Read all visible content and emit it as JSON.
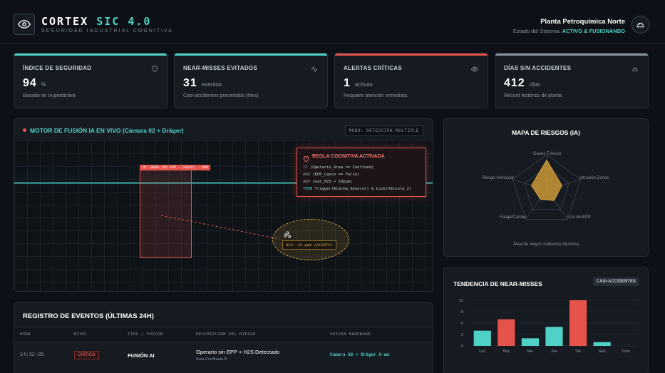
{
  "header": {
    "brand_main": "CORTEX",
    "brand_accent": "SIC 4.0",
    "subtitle": "SEGURIDAD INDUSTRIAL COGNITIVA",
    "plant_name": "Planta Petroquímica Norte",
    "status_label": "Estado del Sistema:",
    "status_value": "ACTIVO & FUSIONANDO"
  },
  "kpis": [
    {
      "title": "ÍNDICE DE SEGURIDAD",
      "value": "94",
      "unit": "%",
      "sub": "Basado en IA predictiva",
      "color": "#4fd1c5",
      "icon": "shield-icon"
    },
    {
      "title": "NEAR-MISSES EVITADOS",
      "value": "31",
      "unit": "eventos",
      "sub": "Casi-accidentes prevenidos (Mes)",
      "color": "#4fd1c5",
      "icon": "activity-icon"
    },
    {
      "title": "ALERTAS CRÍTICAS",
      "value": "1",
      "unit": "activas",
      "sub": "Requiere atención inmediata",
      "color": "#e5534b",
      "icon": "eye-icon"
    },
    {
      "title": "DÍAS SIN ACCIDENTES",
      "value": "412",
      "unit": "días",
      "sub": "Récord histórico de planta",
      "color": "#8b949e",
      "icon": "hardhat-icon"
    }
  ],
  "camera": {
    "title": "MOTOR DE FUSIÓN IA EN VIVO (Cámara 02 + Dräger)",
    "mode": "MODO: DETECCIÓN MÚLTIPLE",
    "detection_label": "ID: 0884 (NO EPP - CASCO) - 98%",
    "gas_label": "H2S: 15 ppm (ALERTA)",
    "rule_title": "REGLA COGNITIVA ACTIVADA",
    "rule_lines": [
      {
        "kw": "IF",
        "text": " (Operario_Area == Confined)"
      },
      {
        "kw": "AND",
        "text": " (EPP_Casco == False)"
      },
      {
        "kw": "AND",
        "text": " (Gas_H2S > 10ppm)"
      },
      {
        "kw": "THEN",
        "text": " Trigger(Alarma_General) & Lock(Válvula_2)"
      }
    ]
  },
  "events": {
    "title": "REGISTRO DE EVENTOS (ÚLTIMAS 24H)",
    "columns": [
      "HORA",
      "NIVEL",
      "TIPO / FUSIÓN",
      "DESCRIPCIÓN DEL RIESGO",
      "ORIGEN HARDWARE"
    ],
    "rows": [
      {
        "time": "14:32:05",
        "level": "CRÍTICO",
        "type": "FUSIÓN AI",
        "desc": "Operario sin EPP + H2S Detectado",
        "desc_sub": "Área Confinada B",
        "origin": "Cámara 02 + Dräger X-am"
      }
    ]
  },
  "radar": {
    "title": "MAPA DE RIESGOS (IA)",
    "footer": "Área de mayor incidencia histórica",
    "chart_data": {
      "type": "radar",
      "axes": [
        "Gases Tóxicos",
        "Intrusión Zonas",
        "Uso de EPP",
        "Fatiga/Caídas",
        "Riesgo Vehicular"
      ],
      "values": [
        0.85,
        0.45,
        0.35,
        0.3,
        0.45
      ],
      "color": "#d6a03a"
    }
  },
  "trend": {
    "title": "TENDENCIA DE NEAR-MISSES",
    "badge": "CASI-ACCIDENTES",
    "chart_data": {
      "type": "bar",
      "categories": [
        "Lun",
        "Mar",
        "Mie",
        "Jue",
        "Vie",
        "Sab",
        "Dom"
      ],
      "values": [
        4,
        7,
        2,
        5,
        12,
        1,
        0
      ],
      "colors": [
        "#4fd1c5",
        "#e5534b",
        "#4fd1c5",
        "#4fd1c5",
        "#e5534b",
        "#4fd1c5",
        "#4fd1c5"
      ],
      "yticks": [
        "0",
        "3",
        "6",
        "9",
        "12"
      ],
      "ylim": [
        0,
        12
      ]
    }
  }
}
